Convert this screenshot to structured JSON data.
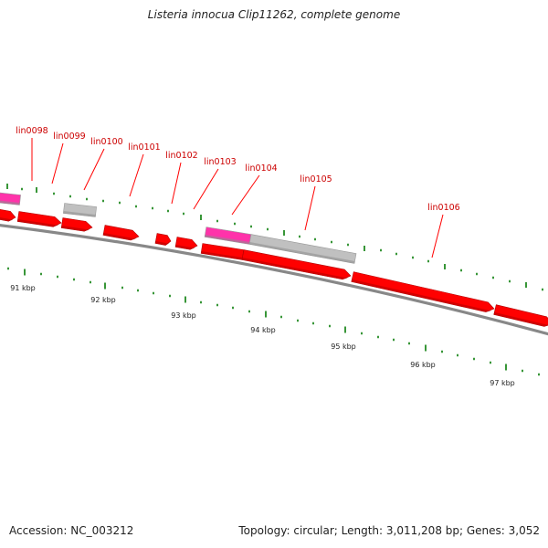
{
  "title": "Listeria innocua Clip11262, complete genome",
  "accession_text": "Accession: NC_003212",
  "summary_text": "Topology: circular; Length: 3,011,208 bp; Genes: 3,052",
  "colors": {
    "cds": "#ff0000",
    "cds_dark": "#b00000",
    "rna": "#ff33aa",
    "other": "#c0c0c0",
    "label": "#cc0000",
    "tick": "#228b22",
    "backbone": "#888888"
  },
  "scale_labels": [
    "91 kbp",
    "92 kbp",
    "93 kbp",
    "94 kbp",
    "95 kbp",
    "96 kbp",
    "97 kbp"
  ],
  "gene_labels": [
    "lin0098",
    "lin0099",
    "lin0100",
    "lin0101",
    "lin0102",
    "lin0103",
    "lin0104",
    "lin0105",
    "lin0106"
  ]
}
